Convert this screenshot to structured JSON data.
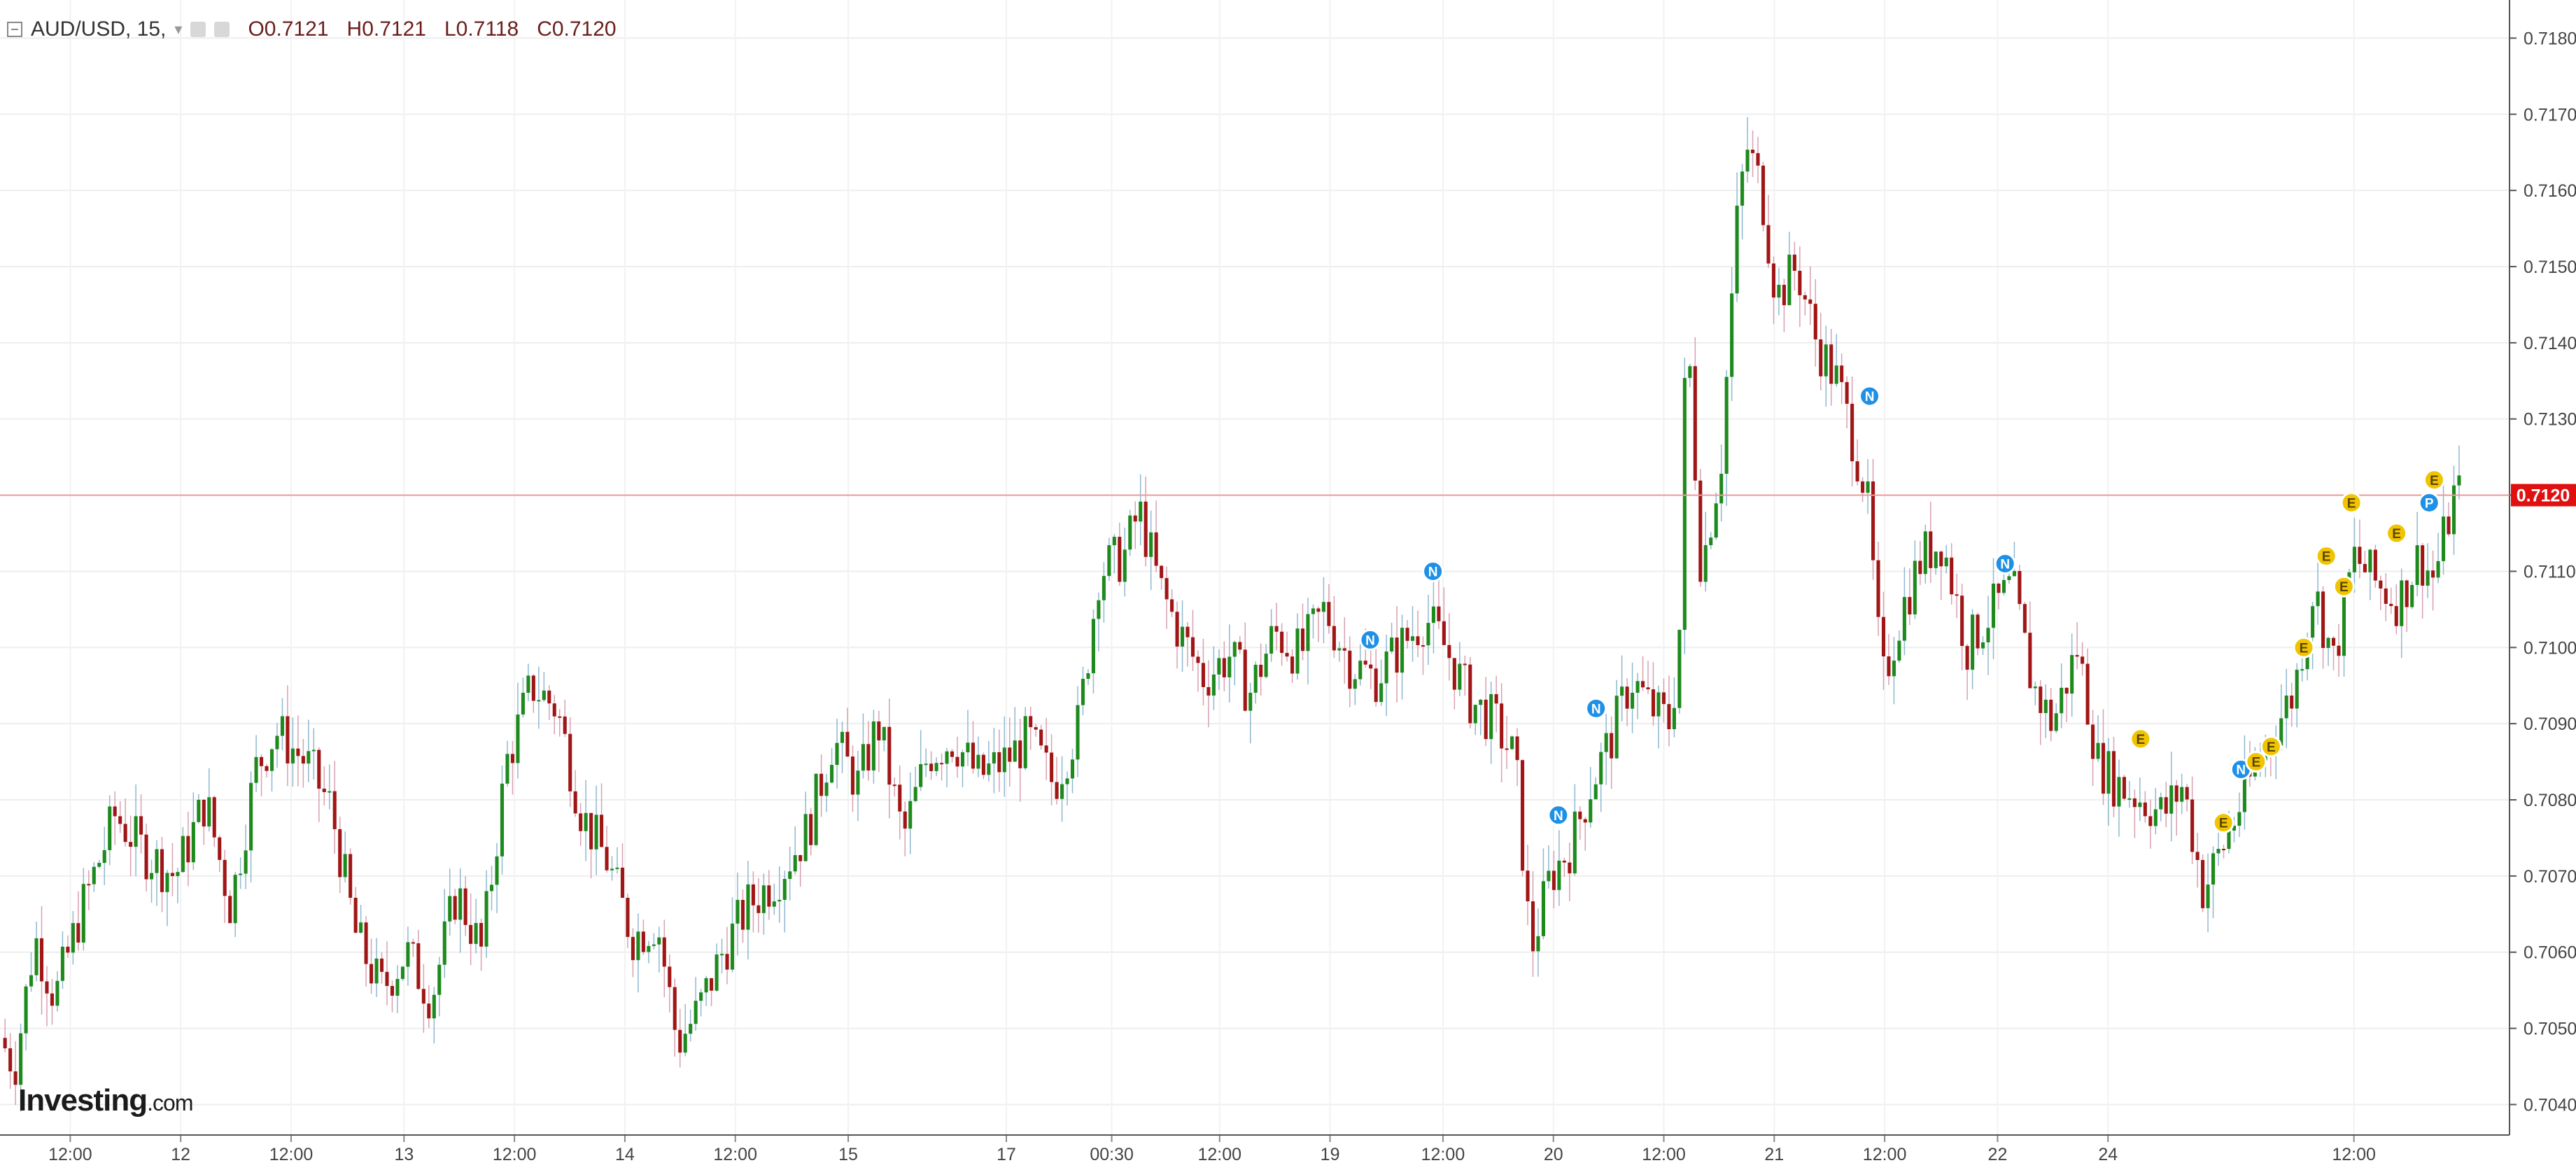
{
  "header": {
    "symbol": "AUD/USD, 15,",
    "open": "O0.7121",
    "high": "H0.7121",
    "low": "L0.7118",
    "close": "C0.7120"
  },
  "logo": {
    "brand": "Investing",
    "domain": ".com"
  },
  "colors": {
    "up": "#1e8a1e",
    "down": "#a01616",
    "last_price": "#e01010",
    "event_n": "#1e90e6",
    "event_e": "#f0c400"
  },
  "chart_data": {
    "type": "candlestick",
    "ylim": [
      0.7036,
      0.7185
    ],
    "y_ticks": [
      "0.7180",
      "0.7170",
      "0.7160",
      "0.7150",
      "0.7140",
      "0.7130",
      "0.7120",
      "0.7110",
      "0.7100",
      "0.7090",
      "0.7080",
      "0.7070",
      "0.7060",
      "0.7050",
      "0.7040"
    ],
    "last_price": {
      "value": 0.712,
      "label": "0.7120"
    },
    "x_labels": [
      "12:00",
      "12",
      "12:00",
      "13",
      "12:00",
      "14",
      "12:00",
      "15",
      "17",
      "00:30",
      "12:00",
      "19",
      "12:00",
      "20",
      "12:00",
      "21",
      "12:00",
      "22",
      "24",
      "12:00"
    ],
    "x_label_positions": [
      0.028,
      0.072,
      0.116,
      0.161,
      0.205,
      0.249,
      0.293,
      0.338,
      0.401,
      0.443,
      0.486,
      0.53,
      0.575,
      0.619,
      0.663,
      0.707,
      0.751,
      0.796,
      0.84,
      0.938
    ],
    "price_path": [
      [
        0.0,
        0.705
      ],
      [
        0.008,
        0.7045
      ],
      [
        0.016,
        0.7062
      ],
      [
        0.024,
        0.7054
      ],
      [
        0.034,
        0.7065
      ],
      [
        0.048,
        0.7078
      ],
      [
        0.06,
        0.7073
      ],
      [
        0.072,
        0.707
      ],
      [
        0.084,
        0.708
      ],
      [
        0.094,
        0.7066
      ],
      [
        0.104,
        0.7084
      ],
      [
        0.112,
        0.7089
      ],
      [
        0.124,
        0.7085
      ],
      [
        0.134,
        0.7079
      ],
      [
        0.144,
        0.7062
      ],
      [
        0.154,
        0.7055
      ],
      [
        0.164,
        0.706
      ],
      [
        0.174,
        0.7054
      ],
      [
        0.184,
        0.7068
      ],
      [
        0.194,
        0.706
      ],
      [
        0.204,
        0.7085
      ],
      [
        0.214,
        0.7095
      ],
      [
        0.224,
        0.7092
      ],
      [
        0.234,
        0.7078
      ],
      [
        0.244,
        0.7072
      ],
      [
        0.254,
        0.7062
      ],
      [
        0.264,
        0.7064
      ],
      [
        0.272,
        0.7048
      ],
      [
        0.28,
        0.7052
      ],
      [
        0.29,
        0.706
      ],
      [
        0.3,
        0.7066
      ],
      [
        0.312,
        0.707
      ],
      [
        0.324,
        0.7076
      ],
      [
        0.334,
        0.7088
      ],
      [
        0.344,
        0.7082
      ],
      [
        0.352,
        0.709
      ],
      [
        0.362,
        0.7075
      ],
      [
        0.372,
        0.7086
      ],
      [
        0.382,
        0.7088
      ],
      [
        0.392,
        0.7083
      ],
      [
        0.402,
        0.7085
      ],
      [
        0.412,
        0.7088
      ],
      [
        0.422,
        0.7082
      ],
      [
        0.432,
        0.709
      ],
      [
        0.44,
        0.711
      ],
      [
        0.45,
        0.7112
      ],
      [
        0.456,
        0.7118
      ],
      [
        0.464,
        0.7108
      ],
      [
        0.472,
        0.7102
      ],
      [
        0.482,
        0.7096
      ],
      [
        0.492,
        0.7099
      ],
      [
        0.5,
        0.7094
      ],
      [
        0.51,
        0.7102
      ],
      [
        0.52,
        0.7099
      ],
      [
        0.53,
        0.7105
      ],
      [
        0.54,
        0.7098
      ],
      [
        0.55,
        0.7096
      ],
      [
        0.56,
        0.71
      ],
      [
        0.57,
        0.7104
      ],
      [
        0.578,
        0.71
      ],
      [
        0.588,
        0.7093
      ],
      [
        0.598,
        0.709
      ],
      [
        0.606,
        0.7085
      ],
      [
        0.612,
        0.706
      ],
      [
        0.62,
        0.707
      ],
      [
        0.628,
        0.7074
      ],
      [
        0.636,
        0.7082
      ],
      [
        0.644,
        0.7088
      ],
      [
        0.652,
        0.7096
      ],
      [
        0.66,
        0.7092
      ],
      [
        0.668,
        0.709
      ],
      [
        0.672,
        0.7105
      ],
      [
        0.674,
        0.7145
      ],
      [
        0.68,
        0.711
      ],
      [
        0.688,
        0.7125
      ],
      [
        0.694,
        0.7155
      ],
      [
        0.698,
        0.7166
      ],
      [
        0.704,
        0.716
      ],
      [
        0.71,
        0.7146
      ],
      [
        0.718,
        0.715
      ],
      [
        0.726,
        0.714
      ],
      [
        0.734,
        0.7135
      ],
      [
        0.74,
        0.7128
      ],
      [
        0.746,
        0.712
      ],
      [
        0.752,
        0.7095
      ],
      [
        0.76,
        0.7105
      ],
      [
        0.768,
        0.7112
      ],
      [
        0.776,
        0.7114
      ],
      [
        0.786,
        0.71
      ],
      [
        0.794,
        0.7104
      ],
      [
        0.804,
        0.7108
      ],
      [
        0.812,
        0.7095
      ],
      [
        0.82,
        0.709
      ],
      [
        0.83,
        0.71
      ],
      [
        0.838,
        0.7085
      ],
      [
        0.846,
        0.7082
      ],
      [
        0.856,
        0.708
      ],
      [
        0.864,
        0.7078
      ],
      [
        0.872,
        0.7082
      ],
      [
        0.88,
        0.7068
      ],
      [
        0.888,
        0.7074
      ],
      [
        0.898,
        0.7082
      ],
      [
        0.906,
        0.7088
      ],
      [
        0.916,
        0.7094
      ],
      [
        0.924,
        0.7108
      ],
      [
        0.932,
        0.7098
      ],
      [
        0.94,
        0.7112
      ],
      [
        0.95,
        0.7108
      ],
      [
        0.958,
        0.7106
      ],
      [
        0.966,
        0.7112
      ],
      [
        0.972,
        0.7109
      ],
      [
        0.98,
        0.712
      ]
    ],
    "events": [
      {
        "type": "N",
        "x": 0.546,
        "y": 0.7101
      },
      {
        "type": "N",
        "x": 0.571,
        "y": 0.711
      },
      {
        "type": "N",
        "x": 0.621,
        "y": 0.7078
      },
      {
        "type": "N",
        "x": 0.636,
        "y": 0.7092
      },
      {
        "type": "N",
        "x": 0.745,
        "y": 0.7133
      },
      {
        "type": "N",
        "x": 0.799,
        "y": 0.7111
      },
      {
        "type": "N",
        "x": 0.893,
        "y": 0.7084
      },
      {
        "type": "E",
        "x": 0.853,
        "y": 0.7088
      },
      {
        "type": "E",
        "x": 0.886,
        "y": 0.7077
      },
      {
        "type": "E",
        "x": 0.899,
        "y": 0.7085
      },
      {
        "type": "E",
        "x": 0.905,
        "y": 0.7087
      },
      {
        "type": "E",
        "x": 0.918,
        "y": 0.71
      },
      {
        "type": "E",
        "x": 0.927,
        "y": 0.7112
      },
      {
        "type": "E",
        "x": 0.934,
        "y": 0.7108
      },
      {
        "type": "E",
        "x": 0.937,
        "y": 0.7119
      },
      {
        "type": "E",
        "x": 0.955,
        "y": 0.7115
      },
      {
        "type": "E",
        "x": 0.97,
        "y": 0.7122
      },
      {
        "type": "P",
        "x": 0.968,
        "y": 0.7119
      }
    ]
  }
}
